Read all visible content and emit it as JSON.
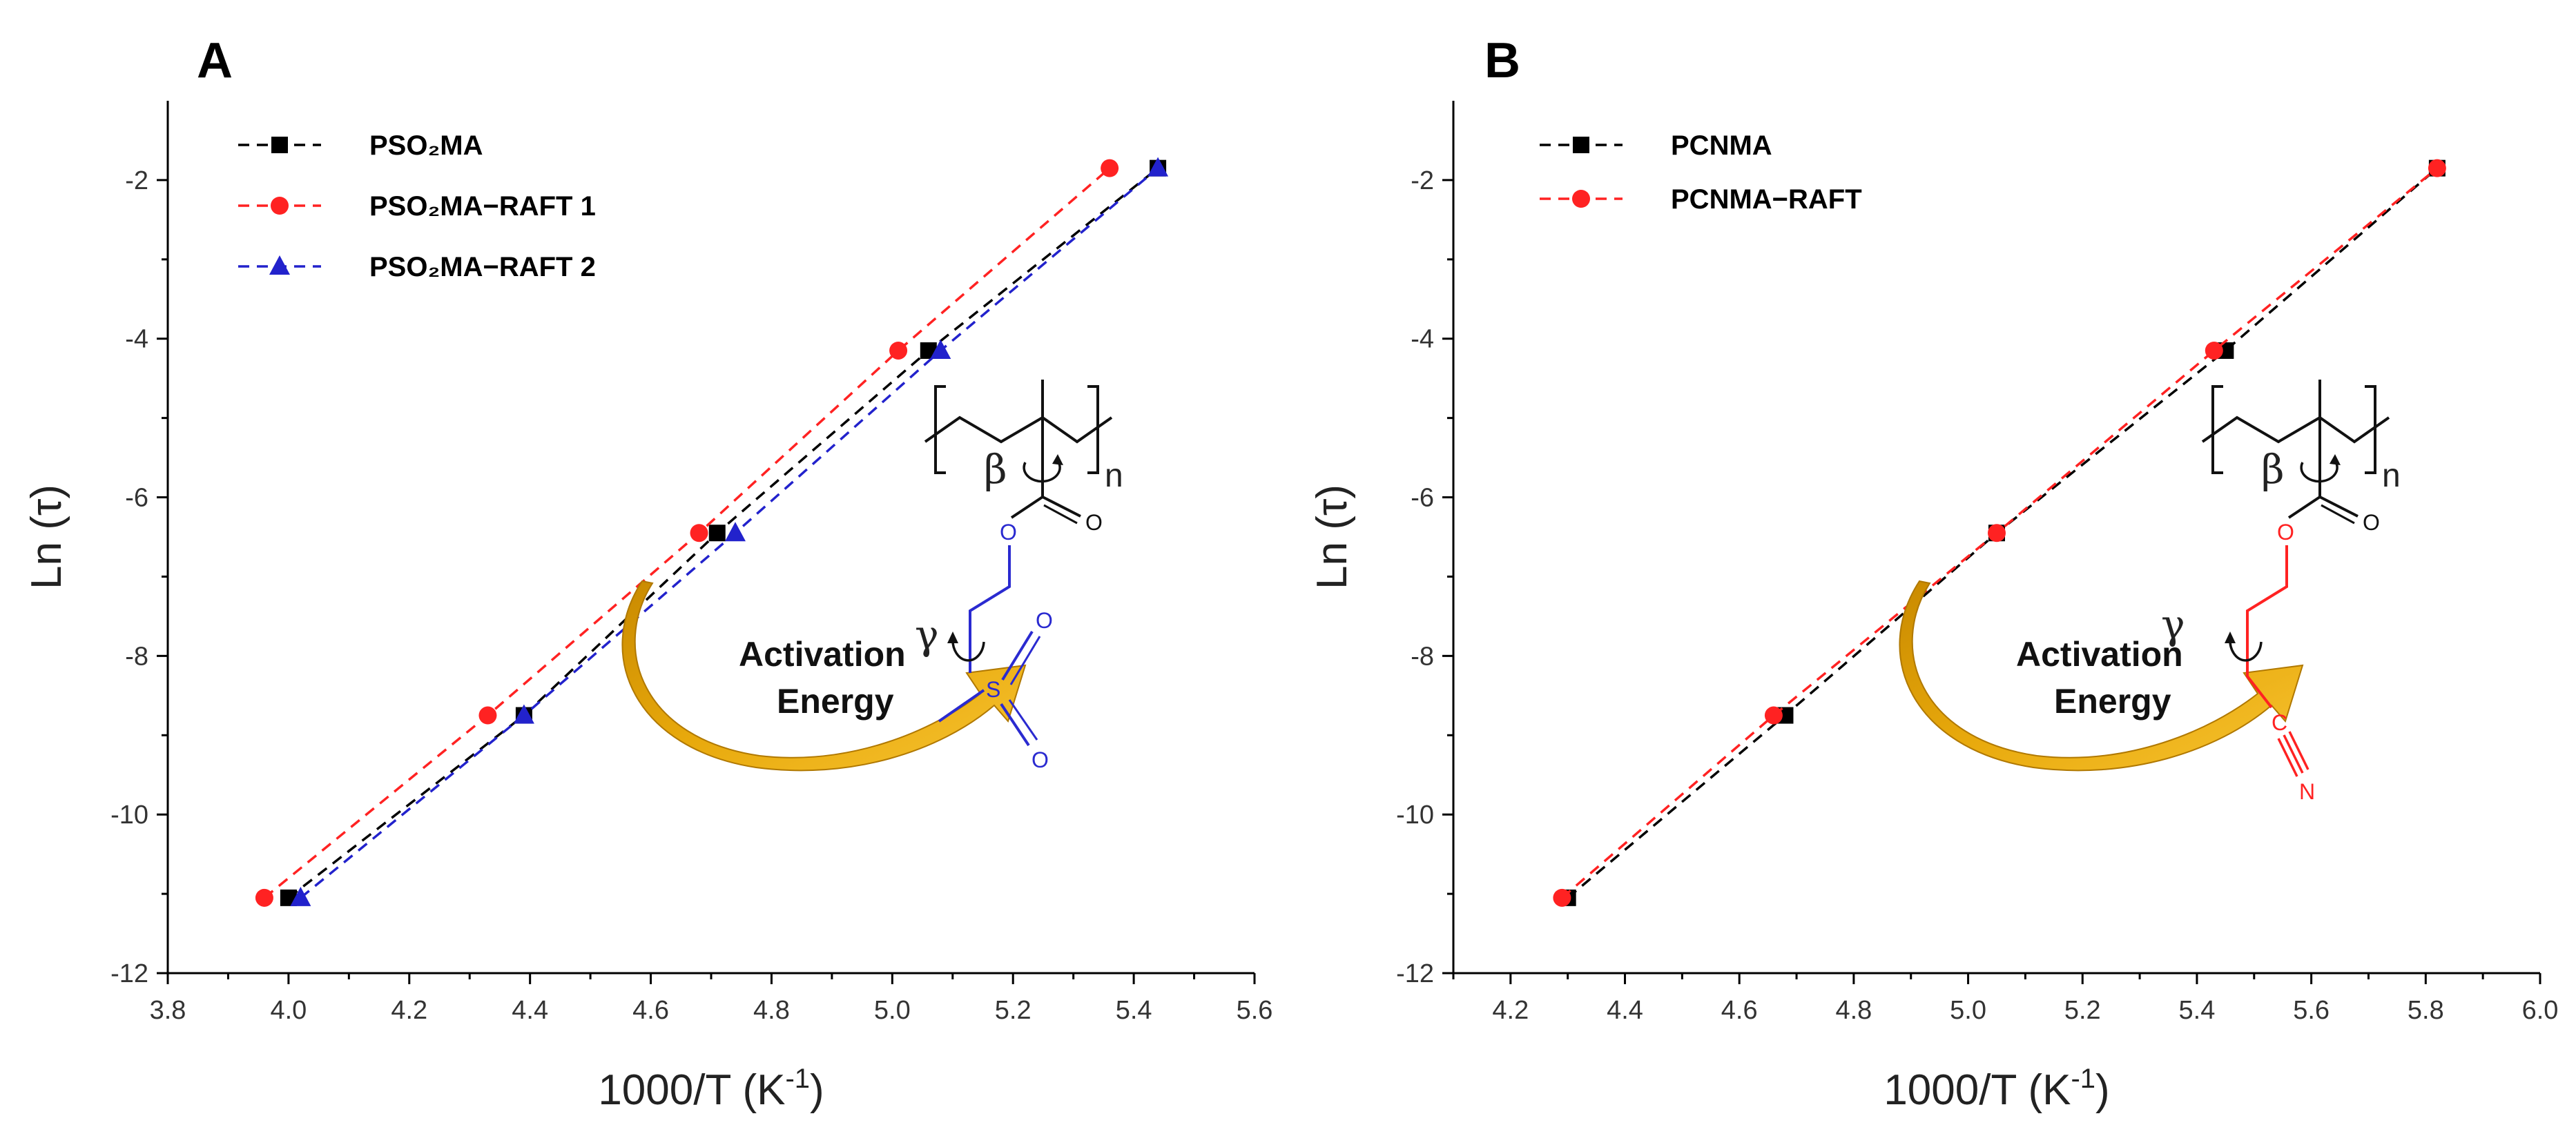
{
  "chart_data": [
    {
      "panel": "A",
      "type": "line",
      "xlabel": "1000/T (K",
      "xlabel_sup": "-1",
      "xlabel_close": ")",
      "ylabel": "Ln (τ)",
      "xlim": [
        3.8,
        5.6
      ],
      "ylim": [
        -12,
        -1
      ],
      "xticks": [
        "3.8",
        "4.0",
        "4.2",
        "4.4",
        "4.6",
        "4.8",
        "5.0",
        "5.2",
        "5.4",
        "5.6"
      ],
      "yticks": [
        "-2",
        "-4",
        "-6",
        "-8",
        "-10",
        "-12"
      ],
      "series": [
        {
          "name": "PSO₂MA",
          "color": "#000000",
          "marker": "square",
          "x": [
            4.0,
            4.39,
            4.71,
            5.06,
            5.44
          ],
          "y": [
            -11.05,
            -8.75,
            -6.45,
            -4.15,
            -1.85
          ]
        },
        {
          "name": "PSO₂MA−RAFT 1",
          "color": "#ff2222",
          "marker": "circle",
          "x": [
            3.96,
            4.33,
            4.68,
            5.01,
            5.36
          ],
          "y": [
            -11.05,
            -8.75,
            -6.45,
            -4.15,
            -1.85
          ]
        },
        {
          "name": "PSO₂MA−RAFT 2",
          "color": "#2222cc",
          "marker": "triangle",
          "x": [
            4.02,
            4.39,
            4.74,
            5.08,
            5.44
          ],
          "y": [
            -11.05,
            -8.75,
            -6.45,
            -4.15,
            -1.85
          ]
        }
      ],
      "annotation": {
        "line1": "Activation",
        "line2": "Energy",
        "beta": "β",
        "gamma": "γ",
        "n": "n",
        "atoms": {
          "o_ester_carbonyl": "O",
          "o_ester": "O",
          "s": "S",
          "o1": "O",
          "o2": "O"
        }
      }
    },
    {
      "panel": "B",
      "type": "line",
      "xlabel": "1000/T (K",
      "xlabel_sup": "-1",
      "xlabel_close": ")",
      "ylabel": "Ln (τ)",
      "xlim": [
        4.1,
        6.0
      ],
      "ylim": [
        -12,
        -1
      ],
      "xticks": [
        "4.2",
        "4.4",
        "4.6",
        "4.8",
        "5.0",
        "5.2",
        "5.4",
        "5.6",
        "5.8",
        "6.0"
      ],
      "yticks": [
        "-2",
        "-4",
        "-6",
        "-8",
        "-10",
        "-12"
      ],
      "series": [
        {
          "name": "PCNMA",
          "color": "#000000",
          "marker": "square",
          "x": [
            4.3,
            4.68,
            5.05,
            5.45,
            5.82
          ],
          "y": [
            -11.05,
            -8.75,
            -6.45,
            -4.15,
            -1.85
          ]
        },
        {
          "name": "PCNMA−RAFT",
          "color": "#ff2222",
          "marker": "circle",
          "x": [
            4.29,
            4.66,
            5.05,
            5.43,
            5.82
          ],
          "y": [
            -11.05,
            -8.75,
            -6.45,
            -4.15,
            -1.85
          ]
        }
      ],
      "annotation": {
        "line1": "Activation",
        "line2": "Energy",
        "beta": "β",
        "gamma": "γ",
        "n": "n",
        "atoms": {
          "o_ester_carbonyl": "O",
          "o_ester": "O",
          "c": "C",
          "n_atom": "N"
        }
      }
    }
  ]
}
